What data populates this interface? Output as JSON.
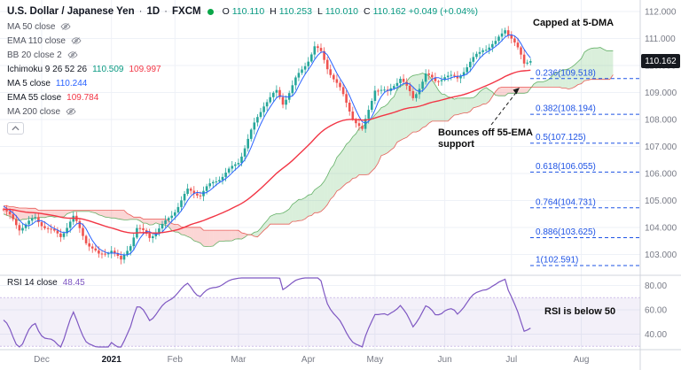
{
  "symbol": {
    "title": "U.S. Dollar / Japanese Yen",
    "separator": "·",
    "interval": "1D",
    "exchange": "FXCM",
    "status_color": "#0aa648",
    "ohlc": {
      "o_label": "O",
      "o_value": "110.110",
      "h_label": "H",
      "h_value": "110.253",
      "l_label": "L",
      "l_value": "110.010",
      "c_label": "C",
      "c_value": "110.162",
      "change": "+0.049 (+0.04%)",
      "color": "#089981"
    }
  },
  "legend": {
    "rows": [
      {
        "label": "MA 50 close",
        "hidden": true
      },
      {
        "label": "EMA 110 close",
        "hidden": true
      },
      {
        "label": "BB 20 close 2",
        "hidden": true
      },
      {
        "label": "Ichimoku 9 26 52 26",
        "values": [
          {
            "text": "110.509",
            "color": "#089981"
          },
          {
            "text": "109.997",
            "color": "#f23645"
          }
        ]
      },
      {
        "label": "MA 5 close",
        "values": [
          {
            "text": "110.244",
            "color": "#2962ff"
          }
        ]
      },
      {
        "label": "EMA 55 close",
        "values": [
          {
            "text": "109.784",
            "color": "#f23645"
          }
        ]
      },
      {
        "label": "MA 200 close",
        "hidden": true
      }
    ]
  },
  "rsi_legend": {
    "label": "RSI 14 close",
    "value": "48.45",
    "color": "#7e57c2"
  },
  "annotations": {
    "capped": "Capped at 5-DMA",
    "bounce": "Bounces off 55-EMA support",
    "rsi_note": "RSI is below 50"
  },
  "axis": {
    "last_price": "110.162",
    "last_price_bg": "#16191f"
  },
  "chart_data": {
    "type": "candlestick",
    "symbol": "USD/JPY",
    "interval": "1D",
    "title": "U.S. Dollar / Japanese Yen, 1D, FXCM",
    "y_axis": {
      "ticks": [
        112,
        111,
        110,
        109,
        108,
        107,
        106,
        105,
        104,
        103
      ],
      "decimals": 3,
      "range": [
        102.3,
        112.15
      ]
    },
    "x_axis": {
      "labels": [
        "Dec",
        "2021",
        "Feb",
        "Mar",
        "Apr",
        "May",
        "Jun",
        "Jul",
        "Aug"
      ],
      "bar_index": [
        12,
        34,
        54,
        74,
        96,
        117,
        139,
        160,
        182
      ]
    },
    "last_bar": {
      "open": 110.11,
      "high": 110.253,
      "low": 110.01,
      "close": 110.162,
      "change": 0.049,
      "change_pct": 0.04
    },
    "visible_bars": 167,
    "history_bars": 80,
    "close_anchors": [
      [
        -80,
        105.45
      ],
      [
        -70,
        105.8
      ],
      [
        -60,
        105.2
      ],
      [
        -50,
        104.5
      ],
      [
        -40,
        105.3
      ],
      [
        -30,
        104.1
      ],
      [
        -22,
        103.8
      ],
      [
        -12,
        104.7
      ],
      [
        -4,
        105.0
      ],
      [
        0,
        104.55
      ],
      [
        5,
        103.9
      ],
      [
        10,
        104.45
      ],
      [
        14,
        104.05
      ],
      [
        18,
        103.65
      ],
      [
        22,
        104.25
      ],
      [
        26,
        103.45
      ],
      [
        30,
        103.05
      ],
      [
        34,
        103.3
      ],
      [
        37,
        102.75
      ],
      [
        40,
        103.3
      ],
      [
        42,
        103.85
      ],
      [
        46,
        103.6
      ],
      [
        50,
        104.15
      ],
      [
        54,
        104.75
      ],
      [
        58,
        105.35
      ],
      [
        62,
        105.1
      ],
      [
        66,
        105.6
      ],
      [
        70,
        106.1
      ],
      [
        74,
        106.55
      ],
      [
        78,
        107.55
      ],
      [
        82,
        108.45
      ],
      [
        86,
        108.95
      ],
      [
        88,
        108.6
      ],
      [
        92,
        109.6
      ],
      [
        96,
        110.3
      ],
      [
        98,
        110.7
      ],
      [
        100,
        110.4
      ],
      [
        102,
        109.8
      ],
      [
        106,
        109.05
      ],
      [
        110,
        108.15
      ],
      [
        113,
        107.7
      ],
      [
        117,
        109.2
      ],
      [
        121,
        108.9
      ],
      [
        125,
        109.45
      ],
      [
        129,
        108.8
      ],
      [
        133,
        109.8
      ],
      [
        136,
        109.5
      ],
      [
        139,
        109.6
      ],
      [
        143,
        109.4
      ],
      [
        147,
        110.05
      ],
      [
        151,
        110.7
      ],
      [
        155,
        110.95
      ],
      [
        158,
        111.4
      ],
      [
        160,
        111.0
      ],
      [
        162,
        110.5
      ],
      [
        164,
        109.95
      ],
      [
        166,
        110.162
      ]
    ],
    "wiggle": {
      "a1": 0.08,
      "f1": 0.9,
      "a2": 0.12,
      "f2": 0.31
    },
    "candle_colors": {
      "up": "#26a69a",
      "down": "#ef5350"
    },
    "overlays": {
      "ma5": {
        "period": 5,
        "last": 110.244,
        "color": "#2962ff"
      },
      "ema55": {
        "period": 55,
        "last": 109.784,
        "color": "#f23645"
      },
      "ichimoku": {
        "params": [
          9,
          26,
          52,
          26
        ],
        "senkou_a_last": 110.509,
        "senkou_b_last": 109.997,
        "cloud_up": "#66bb6a",
        "cloud_down": "#ef5350",
        "cloud_opacity": 0.24,
        "line_up": "#43a047",
        "line_down": "#e53935"
      }
    },
    "fib_levels": [
      {
        "ratio": "0.236",
        "price": 109.518
      },
      {
        "ratio": "0.382",
        "price": 108.194
      },
      {
        "ratio": "0.5",
        "price": 107.125
      },
      {
        "ratio": "0.618",
        "price": 106.055
      },
      {
        "ratio": "0.764",
        "price": 104.731
      },
      {
        "ratio": "0.886",
        "price": 103.625
      },
      {
        "ratio": "1",
        "price": 102.591
      }
    ],
    "fib_color": "#1e53e5",
    "rsi_pane": {
      "period": 14,
      "last": 48.45,
      "color": "#7e57c2",
      "band": [
        30,
        70
      ],
      "ticks": [
        80,
        60,
        40
      ],
      "decimals": 2
    }
  }
}
